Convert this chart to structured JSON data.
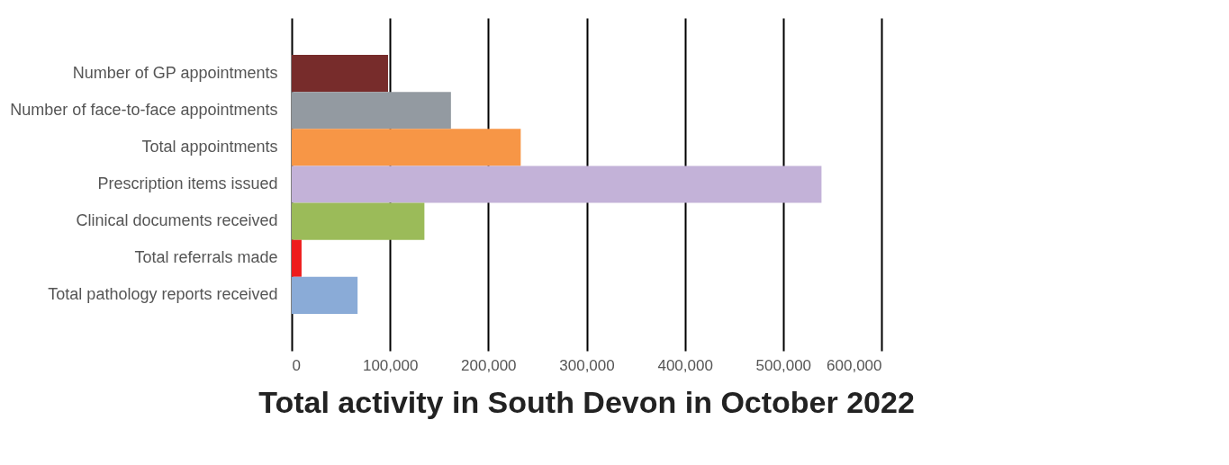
{
  "chart_data": {
    "type": "bar",
    "orientation": "horizontal",
    "title": "Total activity in South Devon in October 2022",
    "categories": [
      "Number of GP appointments",
      "Number of face-to-face appointments",
      "Total appointments",
      "Prescription items issued",
      "Clinical documents received",
      "Total referrals made",
      "Total pathology reports received"
    ],
    "values": [
      98000,
      162000,
      233000,
      539000,
      135000,
      10000,
      67000
    ],
    "colors": [
      "#772c2b",
      "#939aa1",
      "#f79646",
      "#c3b2d8",
      "#9bbb59",
      "#ee1c1c",
      "#8aabd7"
    ],
    "xlim": [
      0,
      600000
    ],
    "xticks": [
      0,
      {
        "value": 100000,
        "label": "100,000"
      },
      {
        "value": 200000,
        "label": "200,000"
      },
      {
        "value": 300000,
        "label": "300,000"
      },
      {
        "value": 400000,
        "label": "400,000"
      },
      {
        "value": 500000,
        "label": "500,000"
      },
      {
        "value": 600000,
        "label": "600,000"
      }
    ],
    "grid": "x",
    "legend": false
  }
}
